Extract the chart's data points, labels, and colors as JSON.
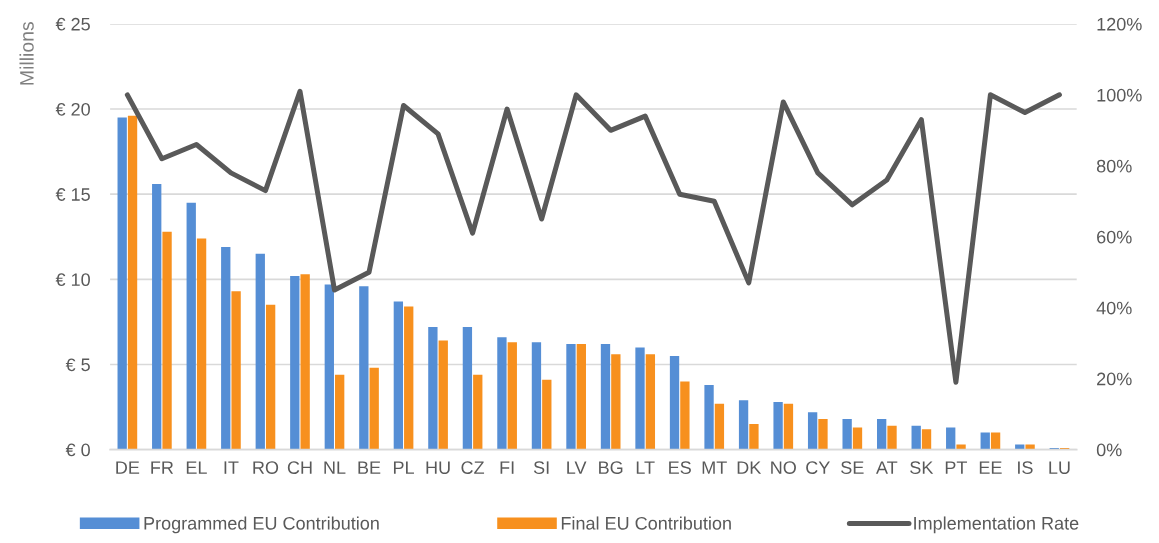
{
  "chart_data": {
    "type": "bar",
    "ylabel": "Millions",
    "categories": [
      "DE",
      "FR",
      "EL",
      "IT",
      "RO",
      "CH",
      "NL",
      "BE",
      "PL",
      "HU",
      "CZ",
      "FI",
      "SI",
      "LV",
      "BG",
      "LT",
      "ES",
      "MT",
      "DK",
      "NO",
      "CY",
      "SE",
      "AT",
      "SK",
      "PT",
      "EE",
      "IS",
      "LU"
    ],
    "series": [
      {
        "name": "Programmed EU Contribution",
        "color": "#558ed5",
        "values": [
          19.5,
          15.6,
          14.5,
          11.9,
          11.5,
          10.2,
          9.7,
          9.6,
          8.7,
          7.2,
          7.2,
          6.6,
          6.3,
          6.2,
          6.2,
          6.0,
          5.5,
          3.8,
          2.9,
          2.8,
          2.2,
          1.8,
          1.8,
          1.4,
          1.3,
          1.0,
          0.3,
          0.1
        ]
      },
      {
        "name": "Final EU Contribution",
        "color": "#f7901e",
        "values": [
          19.6,
          12.8,
          12.4,
          9.3,
          8.5,
          10.3,
          4.4,
          4.8,
          8.4,
          6.4,
          4.4,
          6.3,
          4.1,
          6.2,
          5.6,
          5.6,
          4.0,
          2.7,
          1.5,
          2.7,
          1.8,
          1.3,
          1.4,
          1.2,
          0.3,
          1.0,
          0.3,
          0.1
        ]
      },
      {
        "name": "Implementation Rate",
        "type": "line",
        "axis": "y2",
        "color": "#595959",
        "values": [
          100,
          82,
          86,
          78,
          73,
          101,
          45,
          50,
          97,
          89,
          61,
          96,
          65,
          100,
          90,
          94,
          72,
          70,
          47,
          98,
          78,
          69,
          76,
          93,
          19,
          100,
          95,
          100
        ]
      }
    ],
    "ylim": [
      0,
      25
    ],
    "yticks": [
      {
        "value": 0,
        "label": "€ 0"
      },
      {
        "value": 5,
        "label": "€ 5"
      },
      {
        "value": 10,
        "label": "€ 10"
      },
      {
        "value": 15,
        "label": "€ 15"
      },
      {
        "value": 20,
        "label": "€ 20"
      },
      {
        "value": 25,
        "label": "€ 25"
      }
    ],
    "y2lim": [
      0,
      120
    ],
    "y2ticks": [
      {
        "value": 0,
        "label": "0%"
      },
      {
        "value": 20,
        "label": "20%"
      },
      {
        "value": 40,
        "label": "40%"
      },
      {
        "value": 60,
        "label": "60%"
      },
      {
        "value": 80,
        "label": "80%"
      },
      {
        "value": 100,
        "label": "100%"
      },
      {
        "value": 120,
        "label": "120%"
      }
    ],
    "grid": "y",
    "legend": "bottom"
  }
}
